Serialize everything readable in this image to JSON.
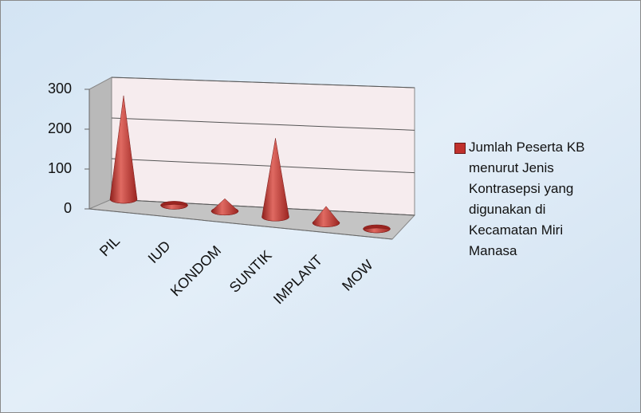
{
  "chart_data": {
    "type": "cone3d",
    "categories": [
      "PIL",
      "IUD",
      "KONDOM",
      "SUNTIK",
      "IMPLANT",
      "MOW"
    ],
    "series": [
      {
        "name": "Jumlah Peserta KB menurut Jenis Kontrasepsi yang digunakan di Kecamatan Miri Manasa",
        "color": "#c0302c",
        "values": [
          250,
          2,
          30,
          190,
          40,
          2
        ]
      }
    ],
    "ylim": [
      0,
      300
    ],
    "yticks": [
      0,
      100,
      200,
      300
    ],
    "grid": true,
    "legend": "right"
  }
}
